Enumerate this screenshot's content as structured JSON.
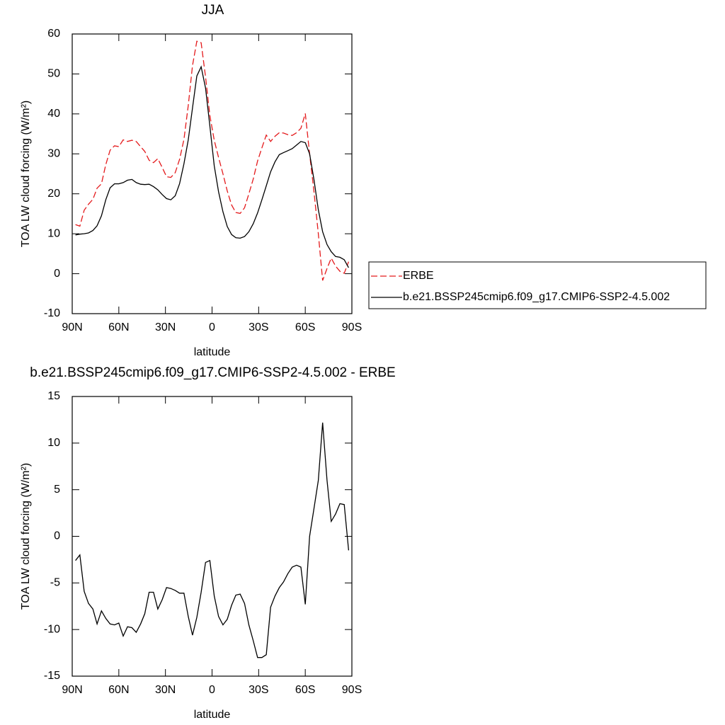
{
  "chart_data": [
    {
      "type": "line",
      "title": "JJA",
      "xlabel": "latitude",
      "ylabel": "TOA LW cloud forcing (W/m²)",
      "x": [
        87.9,
        85.1,
        82.3,
        79.5,
        76.7,
        74.0,
        71.2,
        68.4,
        65.6,
        62.8,
        60.0,
        57.2,
        54.4,
        51.6,
        48.8,
        46.0,
        43.3,
        40.5,
        37.7,
        34.9,
        32.1,
        29.3,
        26.5,
        23.7,
        20.9,
        18.1,
        15.3,
        12.6,
        9.8,
        7.0,
        4.2,
        1.4,
        -1.4,
        -4.2,
        -7.0,
        -9.8,
        -12.6,
        -15.3,
        -18.1,
        -20.9,
        -23.7,
        -26.5,
        -29.3,
        -32.1,
        -34.9,
        -37.7,
        -40.5,
        -43.3,
        -46.0,
        -48.8,
        -51.6,
        -54.4,
        -57.2,
        -60.0,
        -62.8,
        -65.6,
        -68.4,
        -71.2,
        -74.0,
        -76.7,
        -79.5,
        -82.3,
        -85.1,
        -87.9
      ],
      "xlim": [
        90,
        -90
      ],
      "xticks": [
        {
          "value": 90,
          "label": "90N"
        },
        {
          "value": 60,
          "label": "60N"
        },
        {
          "value": 30,
          "label": "30N"
        },
        0,
        {
          "value": -30,
          "label": "30S"
        },
        {
          "value": -60,
          "label": "60S"
        },
        {
          "value": -90,
          "label": "90S"
        }
      ],
      "ylim": [
        -10,
        60
      ],
      "yticks": [
        -10,
        0,
        10,
        20,
        30,
        40,
        50,
        60
      ],
      "legend": "right",
      "series": [
        {
          "name": "ERBE",
          "color": "#e41a1c",
          "linestyle": "dashed",
          "values": [
            12.3,
            11.9,
            15.9,
            17.4,
            18.6,
            21.4,
            22.5,
            27.3,
            30.9,
            32.0,
            31.8,
            33.5,
            33.1,
            33.4,
            33.1,
            31.8,
            30.6,
            28.4,
            27.8,
            28.8,
            26.6,
            24.3,
            24.1,
            25.3,
            28.6,
            33.6,
            42.1,
            52.1,
            58.2,
            57.8,
            49.3,
            39.6,
            33.4,
            29.1,
            25.0,
            20.7,
            17.2,
            15.3,
            15.1,
            16.5,
            20.0,
            23.7,
            28.2,
            31.5,
            34.7,
            33.1,
            34.4,
            35.3,
            35.2,
            34.8,
            34.6,
            35.3,
            36.4,
            40.1,
            30.0,
            20.5,
            10.0,
            -1.7,
            1.3,
            3.9,
            1.9,
            0.6,
            0.1,
            3.0
          ]
        },
        {
          "name": "b.e21.BSSP245cmip6.f09_g17.CMIP6-SSP2-4.5.002",
          "color": "#000000",
          "linestyle": "solid",
          "values": [
            9.7,
            9.9,
            10.0,
            10.2,
            10.8,
            12.0,
            14.5,
            18.5,
            21.5,
            22.5,
            22.5,
            22.8,
            23.4,
            23.6,
            22.8,
            22.4,
            22.3,
            22.4,
            21.8,
            21.0,
            19.8,
            18.8,
            18.5,
            19.5,
            22.5,
            27.5,
            33.5,
            41.5,
            49.5,
            51.8,
            46.5,
            37.0,
            27.0,
            20.5,
            15.5,
            11.8,
            9.8,
            9.0,
            8.9,
            9.3,
            10.5,
            12.5,
            15.2,
            18.5,
            22.0,
            25.5,
            28.0,
            29.8,
            30.3,
            30.8,
            31.3,
            32.2,
            33.1,
            32.8,
            30.0,
            23.5,
            16.0,
            10.5,
            7.3,
            5.5,
            4.3,
            4.1,
            3.5,
            1.5
          ]
        }
      ]
    },
    {
      "type": "line",
      "title": "b.e21.BSSP245cmip6.f09_g17.CMIP6-SSP2-4.5.002 - ERBE",
      "xlabel": "latitude",
      "ylabel": "TOA LW cloud forcing (W/m²)",
      "x": [
        87.9,
        85.1,
        82.3,
        79.5,
        76.7,
        74.0,
        71.2,
        68.4,
        65.6,
        62.8,
        60.0,
        57.2,
        54.4,
        51.6,
        48.8,
        46.0,
        43.3,
        40.5,
        37.7,
        34.9,
        32.1,
        29.3,
        26.5,
        23.7,
        20.9,
        18.1,
        15.3,
        12.6,
        9.8,
        7.0,
        4.2,
        1.4,
        -1.4,
        -4.2,
        -7.0,
        -9.8,
        -12.6,
        -15.3,
        -18.1,
        -20.9,
        -23.7,
        -26.5,
        -29.3,
        -32.1,
        -34.9,
        -37.7,
        -40.5,
        -43.3,
        -46.0,
        -48.8,
        -51.6,
        -54.4,
        -57.2,
        -60.0,
        -62.8,
        -65.6,
        -68.4,
        -71.2,
        -74.0,
        -76.7,
        -79.5,
        -82.3,
        -85.1,
        -87.9
      ],
      "xlim": [
        90,
        -90
      ],
      "xticks": [
        {
          "value": 90,
          "label": "90N"
        },
        {
          "value": 60,
          "label": "60N"
        },
        {
          "value": 30,
          "label": "30N"
        },
        0,
        {
          "value": -30,
          "label": "30S"
        },
        {
          "value": -60,
          "label": "60S"
        },
        {
          "value": -90,
          "label": "90S"
        }
      ],
      "ylim": [
        -15,
        15
      ],
      "yticks": [
        -15,
        -10,
        -5,
        0,
        5,
        10,
        15
      ],
      "color": "#000000",
      "values": [
        -2.6,
        -2.0,
        -5.9,
        -7.2,
        -7.8,
        -9.4,
        -8.0,
        -8.8,
        -9.4,
        -9.5,
        -9.3,
        -10.7,
        -9.7,
        -9.8,
        -10.3,
        -9.4,
        -8.3,
        -6.0,
        -6.0,
        -7.8,
        -6.8,
        -5.5,
        -5.6,
        -5.8,
        -6.1,
        -6.1,
        -8.6,
        -10.6,
        -8.7,
        -6.0,
        -2.8,
        -2.6,
        -6.4,
        -8.6,
        -9.5,
        -8.9,
        -7.4,
        -6.3,
        -6.2,
        -7.2,
        -9.5,
        -11.2,
        -13.0,
        -13.0,
        -12.7,
        -7.6,
        -6.4,
        -5.5,
        -4.9,
        -4.0,
        -3.3,
        -3.1,
        -3.3,
        -7.3,
        0.0,
        3.0,
        6.0,
        12.2,
        6.0,
        1.6,
        2.4,
        3.5,
        3.4,
        -1.5
      ]
    }
  ]
}
